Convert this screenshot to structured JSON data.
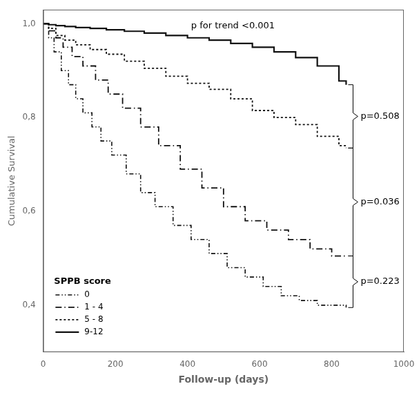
{
  "chart_data": {
    "type": "step",
    "x_label": "Follow-up (days)",
    "y_label": "Cumulative Survival",
    "annotation": "p for trend <0.001",
    "legend_title": "SPPB score",
    "legend": "lower left",
    "grid": false,
    "xlim": [
      0,
      1000
    ],
    "ylim": [
      0.3,
      1.03
    ],
    "xticks": [
      0,
      200,
      400,
      600,
      800,
      1000
    ],
    "yticks": [
      {
        "value": 0.4,
        "label": "0,4"
      },
      {
        "value": 0.6,
        "label": "0,6"
      },
      {
        "value": 0.8,
        "label": "0,8"
      },
      {
        "value": 1.0,
        "label": "1,0"
      }
    ],
    "series": [
      {
        "name": "0",
        "color": "#111111",
        "line_style": "dashdotdot",
        "x": [
          0,
          15,
          30,
          50,
          70,
          90,
          110,
          135,
          160,
          190,
          230,
          270,
          310,
          360,
          410,
          460,
          510,
          560,
          610,
          660,
          710,
          760,
          840
        ],
        "values": [
          1.0,
          0.97,
          0.94,
          0.9,
          0.87,
          0.84,
          0.81,
          0.78,
          0.75,
          0.72,
          0.68,
          0.64,
          0.61,
          0.57,
          0.54,
          0.51,
          0.48,
          0.46,
          0.44,
          0.42,
          0.41,
          0.4,
          0.395
        ]
      },
      {
        "name": "1 - 4",
        "color": "#111111",
        "line_style": "dashdot",
        "x": [
          0,
          15,
          35,
          55,
          80,
          110,
          145,
          180,
          220,
          270,
          320,
          380,
          440,
          500,
          560,
          620,
          680,
          740,
          800,
          840
        ],
        "values": [
          1.0,
          0.985,
          0.97,
          0.95,
          0.93,
          0.91,
          0.88,
          0.85,
          0.82,
          0.78,
          0.74,
          0.69,
          0.65,
          0.61,
          0.58,
          0.56,
          0.54,
          0.52,
          0.505,
          0.505
        ]
      },
      {
        "name": "5 - 8",
        "color": "#111111",
        "line_style": "dotted",
        "x": [
          0,
          15,
          35,
          60,
          90,
          130,
          175,
          225,
          280,
          340,
          400,
          460,
          520,
          580,
          640,
          700,
          760,
          820,
          840
        ],
        "values": [
          1.0,
          0.99,
          0.975,
          0.965,
          0.955,
          0.945,
          0.935,
          0.92,
          0.905,
          0.888,
          0.873,
          0.86,
          0.84,
          0.815,
          0.8,
          0.785,
          0.76,
          0.74,
          0.735
        ]
      },
      {
        "name": "9-12",
        "color": "#111111",
        "line_style": "solid",
        "x": [
          0,
          15,
          35,
          60,
          90,
          130,
          175,
          225,
          280,
          340,
          400,
          460,
          520,
          580,
          640,
          700,
          760,
          820,
          840
        ],
        "values": [
          1.0,
          0.998,
          0.996,
          0.994,
          0.992,
          0.99,
          0.987,
          0.984,
          0.98,
          0.975,
          0.97,
          0.965,
          0.958,
          0.95,
          0.94,
          0.928,
          0.91,
          0.878,
          0.87
        ]
      }
    ],
    "brackets": [
      {
        "label": "p=0.508",
        "y_top": 0.87,
        "y_bot": 0.735
      },
      {
        "label": "p=0.036",
        "y_top": 0.735,
        "y_bot": 0.505
      },
      {
        "label": "p=0.223",
        "y_top": 0.505,
        "y_bot": 0.395
      }
    ]
  }
}
